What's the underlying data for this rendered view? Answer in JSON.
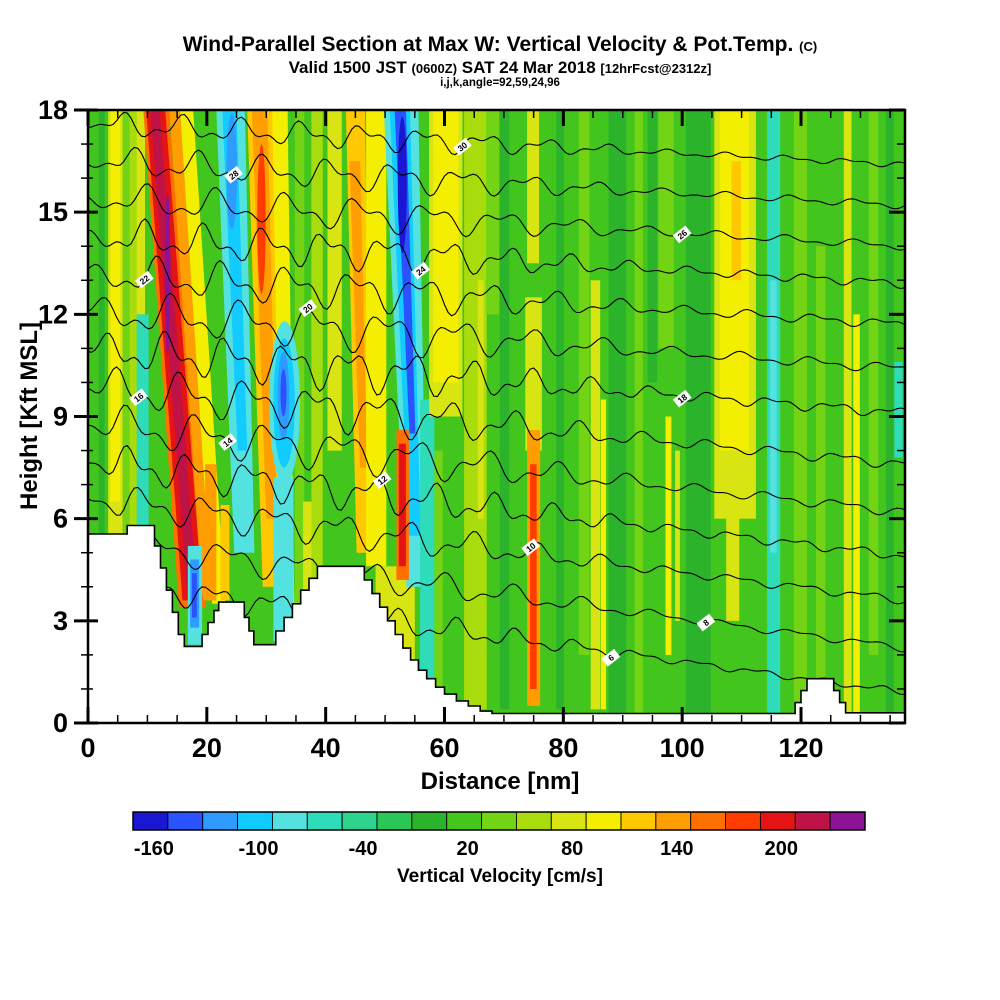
{
  "title": {
    "main": "Wind-Parallel Section at Max W: Vertical Velocity & Pot.Temp.",
    "unit_suffix": "(C)",
    "valid_a": "Valid 1500 JST",
    "valid_b": "(0600Z)",
    "valid_c": "SAT 24 Mar 2018",
    "valid_d": "[12hrFcst@2312z]",
    "param_line": "i,j,k,angle=92,59,24,96"
  },
  "chart_data": {
    "type": "heatmap",
    "title": "Wind-Parallel Section at Max W: Vertical Velocity & Pot.Temp. (C)",
    "xlabel": "Distance [nm]",
    "ylabel": "Height [Kft MSL]",
    "xlim": [
      0,
      137.5
    ],
    "ylim": [
      0,
      18
    ],
    "x_major_ticks": [
      0,
      20,
      40,
      60,
      80,
      100,
      120
    ],
    "x_minor_step": 5,
    "y_major_ticks": [
      0,
      3,
      6,
      9,
      12,
      15,
      18
    ],
    "y_minor_step": 1,
    "grid": false,
    "colorbar": {
      "label": "Vertical Velocity [cm/s]",
      "min": -172,
      "max": 248,
      "step": 20,
      "tick_values": [
        -160,
        -100,
        -40,
        20,
        80,
        140,
        200
      ],
      "colors": [
        "#1a16d2",
        "#2a52ff",
        "#2f9bff",
        "#12ccff",
        "#53e2e0",
        "#2edcba",
        "#2ed38e",
        "#2bc756",
        "#2cb32c",
        "#44c61c",
        "#72d414",
        "#a8dc0c",
        "#d8e512",
        "#f4ef00",
        "#ffc800",
        "#ff9e00",
        "#ff7000",
        "#ff3c00",
        "#e41414",
        "#bf1247",
        "#8c1394"
      ]
    },
    "background_color": "#42c51c",
    "bands": [
      {
        "x": 1.8,
        "w": 1.0,
        "y0": 0,
        "y1": 18,
        "c": "#2cb32c"
      },
      {
        "x": 3.4,
        "w": 2.4,
        "y0": 5.5,
        "y1": 18,
        "c": "#d8e512"
      },
      {
        "x": 3.8,
        "w": 1.6,
        "y0": 6.5,
        "y1": 18,
        "c": "#f4ef00"
      },
      {
        "x": 5.8,
        "w": 1.2,
        "y0": 5.5,
        "y1": 18,
        "c": "#72d414"
      },
      {
        "x": 7.0,
        "w": 1.3,
        "y0": 5.8,
        "y1": 18,
        "c": "#a8dc0c"
      },
      {
        "x": 8.2,
        "w": 2.0,
        "y0": 5.8,
        "y1": 12,
        "c": "#2edcba"
      },
      {
        "x": 8.2,
        "w": 1.4,
        "y0": 12,
        "y1": 18,
        "c": "#d8e512"
      },
      {
        "xt": 9.3,
        "wt": 4.3,
        "xb": 15.3,
        "wb": 4.6,
        "y0": 3.4,
        "y1": 18,
        "c": "#ff7000"
      },
      {
        "xt": 9.8,
        "wt": 3.2,
        "xb": 15.9,
        "wb": 3.4,
        "y0": 3.6,
        "y1": 18,
        "c": "#e41414"
      },
      {
        "xt": 10.5,
        "wt": 1.5,
        "xb": 16.6,
        "wb": 1.7,
        "y0": 4.0,
        "y1": 18,
        "c": "#bf1247"
      },
      {
        "xt": 13.7,
        "wt": 1.8,
        "xb": 19.3,
        "wb": 1.6,
        "y0": 3.6,
        "y1": 18,
        "c": "#ff9e00"
      },
      {
        "xt": 15.5,
        "wt": 2.2,
        "xb": 20.9,
        "wb": 2.2,
        "y0": 3.5,
        "y1": 18,
        "c": "#f4ef00"
      },
      {
        "x": 16.8,
        "w": 2.4,
        "y0": 2.3,
        "y1": 5.2,
        "c": "#53e2e0"
      },
      {
        "x": 17.2,
        "w": 1.5,
        "y0": 2.8,
        "y1": 4.8,
        "c": "#2f9bff"
      },
      {
        "x": 17.5,
        "w": 0.8,
        "y0": 3.1,
        "y1": 4.4,
        "c": "#2a52ff"
      },
      {
        "x": 19.7,
        "w": 1.9,
        "y0": 3.6,
        "y1": 7.6,
        "c": "#ff9e00"
      },
      {
        "x": 22.3,
        "w": 1.5,
        "y0": 3.6,
        "y1": 6.4,
        "c": "#ffc800"
      },
      {
        "xt": 21.6,
        "wt": 4.8,
        "xb": 24.6,
        "wb": 3.4,
        "y0": 5,
        "y1": 18,
        "c": "#53e2e0"
      },
      {
        "xt": 22.6,
        "wt": 2.4,
        "xb": 25.2,
        "wb": 1.6,
        "y0": 8,
        "y1": 18,
        "c": "#12ccff"
      },
      {
        "xt": 26.8,
        "wt": 4.4,
        "xb": 29.4,
        "wb": 3.2,
        "y0": 4,
        "y1": 18,
        "c": "#ffc800"
      },
      {
        "xt": 27.6,
        "wt": 2.6,
        "xb": 30.0,
        "wb": 1.8,
        "y0": 6,
        "y1": 18,
        "c": "#ff9e00"
      },
      {
        "xt": 31.0,
        "wt": 2.6,
        "xb": 32.6,
        "wb": 2.2,
        "y0": 2.4,
        "y1": 18,
        "c": "#f4ef00"
      },
      {
        "x": 31.2,
        "w": 3.4,
        "y0": 2.4,
        "y1": 7.2,
        "c": "#53e2e0"
      },
      {
        "x": 34.8,
        "w": 1.6,
        "y0": 3,
        "y1": 18,
        "c": "#72d414"
      },
      {
        "x": 36.2,
        "w": 1.8,
        "y0": 2.6,
        "y1": 6.5,
        "c": "#d8e512"
      },
      {
        "x": 37.6,
        "w": 1.9,
        "y0": 4,
        "y1": 18,
        "c": "#a8dc0c"
      },
      {
        "x": 40.3,
        "w": 2.4,
        "y0": 8,
        "y1": 18,
        "c": "#d8e512"
      },
      {
        "xt": 43.4,
        "wt": 3.2,
        "xb": 45.2,
        "wb": 2.4,
        "y0": 5,
        "y1": 18,
        "c": "#ffc800"
      },
      {
        "xt": 44.0,
        "wt": 1.8,
        "xb": 45.8,
        "wb": 1.2,
        "y0": 7.5,
        "y1": 16.5,
        "c": "#ff9e00"
      },
      {
        "x": 46.8,
        "w": 3.4,
        "y0": 4.6,
        "y1": 18,
        "c": "#f4ef00"
      },
      {
        "x": 48.4,
        "w": 6.6,
        "y0": 1.2,
        "y1": 4.6,
        "c": "#d8e512"
      },
      {
        "xt": 49.8,
        "wt": 5.8,
        "xb": 53.6,
        "wb": 3.4,
        "y0": 4,
        "y1": 18,
        "c": "#53e2e0"
      },
      {
        "xt": 50.8,
        "wt": 3.4,
        "xb": 54.0,
        "wb": 2.0,
        "y0": 5.5,
        "y1": 18,
        "c": "#12ccff"
      },
      {
        "xt": 51.6,
        "wt": 1.9,
        "xb": 54.1,
        "wb": 1.0,
        "y0": 8.5,
        "y1": 18,
        "c": "#2a52ff"
      },
      {
        "x": 51.9,
        "w": 2.1,
        "y0": 4.2,
        "y1": 8.6,
        "c": "#ff7000"
      },
      {
        "x": 52.3,
        "w": 1.2,
        "y0": 4.6,
        "y1": 8.2,
        "c": "#e41414"
      },
      {
        "x": 55.9,
        "w": 2.4,
        "y0": 0.6,
        "y1": 9.5,
        "c": "#2edcba"
      },
      {
        "x": 57.4,
        "w": 5.6,
        "y0": 9,
        "y1": 18,
        "c": "#d8e512"
      },
      {
        "x": 58.1,
        "w": 4.2,
        "y0": 10,
        "y1": 18,
        "c": "#f4ef00"
      },
      {
        "x": 58.3,
        "w": 1.4,
        "y0": 0.6,
        "y1": 8,
        "c": "#72d414"
      },
      {
        "x": 63.3,
        "w": 3.8,
        "y0": 0.4,
        "y1": 18,
        "c": "#a8dc0c"
      },
      {
        "x": 65.6,
        "w": 1.0,
        "y0": 6,
        "y1": 13,
        "c": "#d8e512"
      },
      {
        "x": 69.3,
        "w": 1.6,
        "y0": 0.4,
        "y1": 18,
        "c": "#2cb32c"
      },
      {
        "x": 67.0,
        "w": 2.2,
        "y0": 12,
        "y1": 18,
        "c": "#72d414"
      },
      {
        "x": 73.6,
        "w": 2.8,
        "y0": 8,
        "y1": 12.5,
        "c": "#d8e512"
      },
      {
        "x": 73.9,
        "w": 2.2,
        "y0": 0.5,
        "y1": 8.6,
        "c": "#ff9e00"
      },
      {
        "x": 74.4,
        "w": 1.1,
        "y0": 1,
        "y1": 7.6,
        "c": "#ff3c00"
      },
      {
        "x": 73.9,
        "w": 2.0,
        "y0": 13.5,
        "y1": 18,
        "c": "#d8e512"
      },
      {
        "x": 78.8,
        "w": 1.3,
        "y0": 0.4,
        "y1": 18,
        "c": "#2cb32c"
      },
      {
        "x": 82.6,
        "w": 1.8,
        "y0": 2,
        "y1": 18,
        "c": "#72d414"
      },
      {
        "x": 84.6,
        "w": 1.6,
        "y0": 0.4,
        "y1": 13,
        "c": "#d8e512"
      },
      {
        "x": 86.3,
        "w": 0.9,
        "y0": 0.4,
        "y1": 9.5,
        "c": "#f4ef00"
      },
      {
        "x": 87.6,
        "w": 3.0,
        "y0": 0.3,
        "y1": 18,
        "c": "#2cb32c"
      },
      {
        "x": 92.0,
        "w": 1.4,
        "y0": 0.3,
        "y1": 18,
        "c": "#72d414"
      },
      {
        "x": 94.2,
        "w": 1.6,
        "y0": 10,
        "y1": 18,
        "c": "#2cb32c"
      },
      {
        "x": 97.2,
        "w": 1.0,
        "y0": 2,
        "y1": 9,
        "c": "#f4ef00"
      },
      {
        "x": 98.8,
        "w": 0.8,
        "y0": 3,
        "y1": 8,
        "c": "#d8e512"
      },
      {
        "x": 100.6,
        "w": 4.2,
        "y0": 0.3,
        "y1": 18,
        "c": "#2cb32c"
      },
      {
        "x": 96.0,
        "w": 2.6,
        "y0": 11,
        "y1": 18,
        "c": "#72d414"
      },
      {
        "x": 105.4,
        "w": 7.0,
        "y0": 6,
        "y1": 18,
        "c": "#d8e512"
      },
      {
        "x": 106.4,
        "w": 4.8,
        "y0": 8,
        "y1": 18,
        "c": "#f4ef00"
      },
      {
        "x": 107.4,
        "w": 2.2,
        "y0": 3,
        "y1": 8,
        "c": "#d8e512"
      },
      {
        "x": 108.3,
        "w": 1.6,
        "y0": 13,
        "y1": 16.5,
        "c": "#ffc800"
      },
      {
        "x": 114.3,
        "w": 2.2,
        "y0": 0.3,
        "y1": 18,
        "c": "#2edcba"
      },
      {
        "x": 114.8,
        "w": 1.1,
        "y0": 5,
        "y1": 13,
        "c": "#53e2e0"
      },
      {
        "x": 118.8,
        "w": 2.2,
        "y0": 0.3,
        "y1": 18,
        "c": "#72d414"
      },
      {
        "x": 122.5,
        "w": 1.6,
        "y0": 0.3,
        "y1": 14,
        "c": "#72d414"
      },
      {
        "x": 127.2,
        "w": 1.3,
        "y0": 0.3,
        "y1": 18,
        "c": "#d8e512"
      },
      {
        "x": 128.8,
        "w": 1.1,
        "y0": 0.3,
        "y1": 12,
        "c": "#f4ef00"
      },
      {
        "x": 131.4,
        "w": 1.6,
        "y0": 2,
        "y1": 18,
        "c": "#72d414"
      },
      {
        "x": 134.3,
        "w": 1.3,
        "y0": 0.3,
        "y1": 18,
        "c": "#2cb32c"
      },
      {
        "x": 135.7,
        "w": 1.4,
        "y0": 7.8,
        "y1": 10.6,
        "c": "#2edcba"
      }
    ],
    "blobs": [
      {
        "cx": 13.4,
        "cy": 13.2,
        "rx": 0.45,
        "ry": 2.4,
        "c": "#8c1394"
      },
      {
        "cx": 24.2,
        "cy": 16.2,
        "rx": 0.9,
        "ry": 1.7,
        "c": "#2f9bff"
      },
      {
        "cx": 29.2,
        "cy": 14.8,
        "rx": 0.7,
        "ry": 2.2,
        "c": "#ff3c00"
      },
      {
        "cx": 33.1,
        "cy": 9.4,
        "rx": 2.6,
        "ry": 2.4,
        "c": "#53e2e0"
      },
      {
        "cx": 33.0,
        "cy": 9.4,
        "rx": 1.8,
        "ry": 1.9,
        "c": "#12ccff"
      },
      {
        "cx": 32.9,
        "cy": 9.6,
        "rx": 1.0,
        "ry": 1.3,
        "c": "#2f9bff"
      },
      {
        "cx": 32.9,
        "cy": 9.7,
        "rx": 0.5,
        "ry": 0.7,
        "c": "#2a52ff"
      },
      {
        "cx": 52.9,
        "cy": 15.8,
        "rx": 0.75,
        "ry": 2.0,
        "c": "#1a16d2"
      }
    ],
    "contours": {
      "unit": "C",
      "levels": [
        30,
        28,
        26,
        24,
        22,
        20,
        18,
        16,
        14,
        12,
        10,
        8,
        6
      ],
      "lines": [
        {
          "label": "30",
          "yL": 17.6,
          "yR": 16.4,
          "amp": 0.42,
          "labx": 63
        },
        {
          "label": "28",
          "yL": 16.5,
          "yR": 15.2,
          "amp": 0.5,
          "labx": 24.5
        },
        {
          "label": "26",
          "yL": 15.4,
          "yR": 14.0,
          "amp": 0.55,
          "labx": 100
        },
        {
          "label": "24",
          "yL": 14.3,
          "yR": 12.9,
          "amp": 0.6,
          "labx": 56
        },
        {
          "label": "22",
          "yL": 13.2,
          "yR": 11.7,
          "amp": 0.65,
          "labx": 9.5
        },
        {
          "label": "20",
          "yL": 12.1,
          "yR": 10.4,
          "amp": 0.7,
          "labx": 37
        },
        {
          "label": "18",
          "yL": 11.0,
          "yR": 9.1,
          "amp": 0.72,
          "labx": 100
        },
        {
          "label": "16",
          "yL": 9.9,
          "yR": 7.6,
          "amp": 0.72,
          "labx": 8.5
        },
        {
          "label": "14",
          "yL": 8.8,
          "yR": 6.2,
          "amp": 0.68,
          "labx": 23.5
        },
        {
          "label": "12",
          "yL": 7.7,
          "yR": 4.9,
          "amp": 0.62,
          "labx": 49.5
        },
        {
          "label": "10",
          "yL": 6.6,
          "yR": 3.6,
          "amp": 0.56,
          "labx": 74.5
        },
        {
          "label": "8",
          "yL": 5.4,
          "yR": 2.2,
          "amp": 0.5,
          "labx": 104
        },
        {
          "label": "6",
          "yL": 4.2,
          "yR": 0.9,
          "amp": 0.45,
          "labx": 88
        }
      ]
    },
    "terrain": {
      "color": "#ffffff",
      "outline": "#000000",
      "profile": [
        [
          0,
          5.55
        ],
        [
          6.6,
          5.8
        ],
        [
          11.2,
          5.2
        ],
        [
          12.2,
          4.55
        ],
        [
          13.2,
          3.9
        ],
        [
          14.2,
          3.25
        ],
        [
          15.2,
          2.6
        ],
        [
          16.2,
          2.25
        ],
        [
          19.2,
          2.6
        ],
        [
          20.2,
          2.95
        ],
        [
          21.2,
          3.3
        ],
        [
          22.0,
          3.55
        ],
        [
          26.3,
          3.1
        ],
        [
          27.1,
          2.7
        ],
        [
          27.9,
          2.3
        ],
        [
          31.6,
          2.7
        ],
        [
          33.0,
          3.1
        ],
        [
          34.4,
          3.5
        ],
        [
          35.8,
          3.9
        ],
        [
          37.2,
          4.25
        ],
        [
          38.6,
          4.6
        ],
        [
          46.5,
          4.2
        ],
        [
          47.8,
          3.8
        ],
        [
          49.1,
          3.4
        ],
        [
          50.4,
          3.0
        ],
        [
          51.7,
          2.6
        ],
        [
          53.0,
          2.2
        ],
        [
          54.3,
          1.85
        ],
        [
          55.6,
          1.55
        ],
        [
          57.0,
          1.3
        ],
        [
          58.5,
          1.05
        ],
        [
          60.0,
          0.85
        ],
        [
          62.0,
          0.65
        ],
        [
          64.0,
          0.5
        ],
        [
          66.0,
          0.35
        ],
        [
          68.0,
          0.28
        ],
        [
          119.0,
          0.6
        ],
        [
          120.0,
          0.95
        ],
        [
          121.0,
          1.3
        ],
        [
          125.5,
          0.95
        ],
        [
          126.5,
          0.6
        ],
        [
          127.5,
          0.3
        ],
        [
          137.5,
          0.3
        ]
      ]
    }
  }
}
